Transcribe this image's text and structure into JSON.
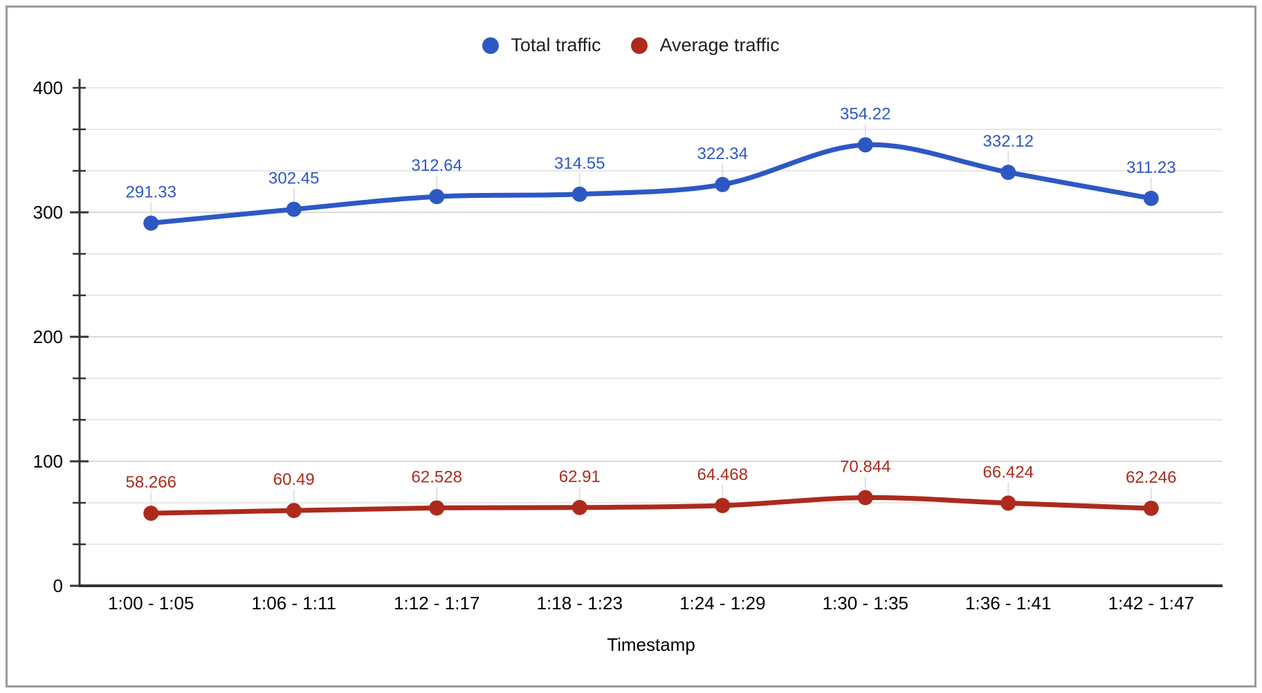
{
  "legend": {
    "items": [
      {
        "label": "Total traffic",
        "color": "#2d58c4"
      },
      {
        "label": "Average traffic",
        "color": "#ad2a1d"
      }
    ]
  },
  "chart_data": {
    "type": "line",
    "title": "",
    "xlabel": "Timestamp",
    "ylabel": "",
    "categories": [
      "1:00 - 1:05",
      "1:06 - 1:11",
      "1:12 - 1:17",
      "1:18 - 1:23",
      "1:24 - 1:29",
      "1:30 - 1:35",
      "1:36 - 1:41",
      "1:42 - 1:47"
    ],
    "series": [
      {
        "name": "Total traffic",
        "color": "#2d58c4",
        "values": [
          291.33,
          302.45,
          312.64,
          314.55,
          322.34,
          354.22,
          332.12,
          311.23
        ],
        "labels": [
          "291.33",
          "302.45",
          "312.64",
          "314.55",
          "322.34",
          "354.22",
          "332.12",
          "311.23"
        ]
      },
      {
        "name": "Average traffic",
        "color": "#ad2a1d",
        "values": [
          58.266,
          60.49,
          62.528,
          62.91,
          64.468,
          70.844,
          66.424,
          62.246
        ],
        "labels": [
          "58.266",
          "60.49",
          "62.528",
          "62.91",
          "64.468",
          "70.844",
          "66.424",
          "62.246"
        ]
      }
    ],
    "ylim": [
      0,
      400
    ],
    "yticks": [
      0,
      100,
      200,
      300,
      400
    ],
    "minor_gridlines_per_interval": 2,
    "grid": true,
    "smooth": true,
    "point_labels_visible": true,
    "legend_position": "top",
    "colors": {
      "axis_line": "#333333",
      "major_gridline": "#d9d9d9",
      "minor_gridline": "#e8e8e8",
      "tick_label": "#000000",
      "label_stub": "#e0e0e0",
      "frame_border": "#9a9a9a",
      "background": "#ffffff"
    }
  }
}
